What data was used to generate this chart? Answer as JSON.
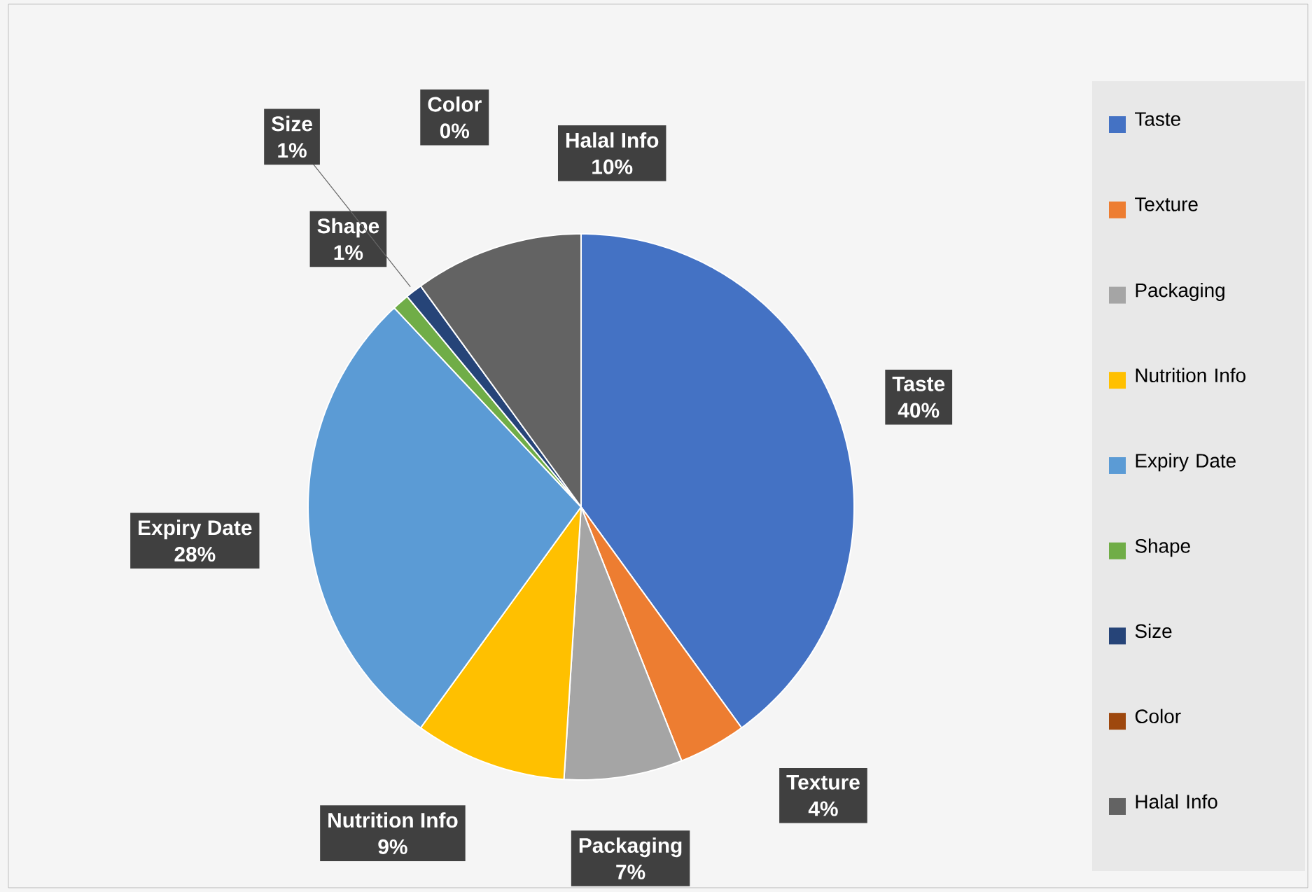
{
  "chart_data": {
    "type": "pie",
    "categories": [
      "Taste",
      "Texture",
      "Packaging",
      "Nutrition Info",
      "Expiry Date",
      "Shape",
      "Size",
      "Color",
      "Halal Info"
    ],
    "values": [
      40,
      4,
      7,
      9,
      28,
      1,
      1,
      0,
      10
    ],
    "colors": [
      "#4472c4",
      "#ed7d31",
      "#a5a5a5",
      "#ffc000",
      "#5b9bd5",
      "#70ad47",
      "#264478",
      "#9e480e",
      "#636363"
    ],
    "data_labels": true,
    "value_labels": [
      "40%",
      "4%",
      "7%",
      "9%",
      "28%",
      "1%",
      "1%",
      "0%",
      "10%"
    ],
    "legend": "right"
  }
}
